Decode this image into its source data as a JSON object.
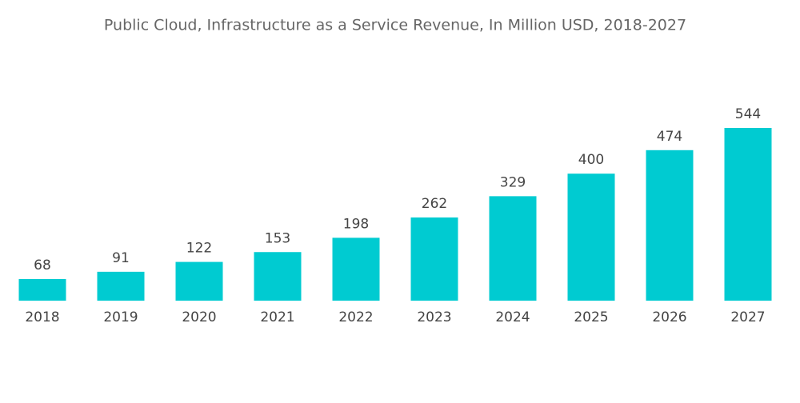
{
  "chart_data": {
    "type": "bar",
    "title": "Public Cloud, Infrastructure as a Service Revenue, In Million USD, 2018-2027",
    "categories": [
      "2018",
      "2019",
      "2020",
      "2021",
      "2022",
      "2023",
      "2024",
      "2025",
      "2026",
      "2027"
    ],
    "values": [
      68,
      91,
      122,
      153,
      198,
      262,
      329,
      400,
      474,
      544
    ],
    "color": "#00cbd1"
  }
}
